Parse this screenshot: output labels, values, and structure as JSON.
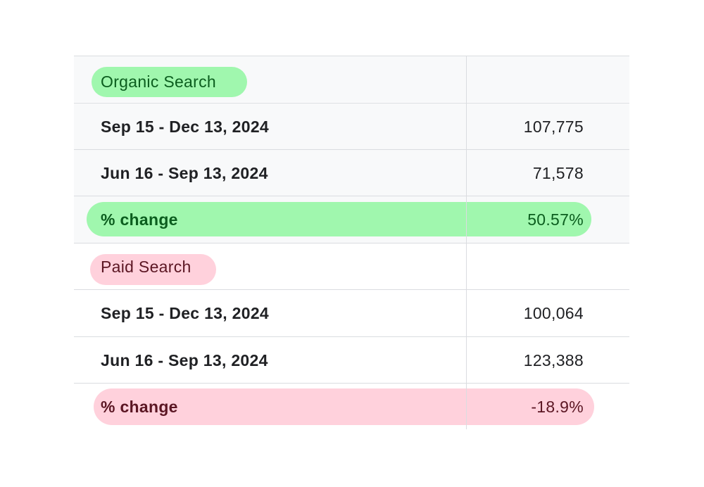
{
  "colors": {
    "organic_highlight": "#a0f7ae",
    "organic_text": "#0b5d1e",
    "paid_highlight": "#ffd1dc",
    "paid_text": "#5b1623",
    "grid": "#dadce0",
    "shaded_row": "#f8f9fa"
  },
  "organic": {
    "title": "Organic Search",
    "rows": [
      {
        "label": "Sep 15 - Dec 13, 2024",
        "value": "107,775"
      },
      {
        "label": "Jun 16 - Sep 13, 2024",
        "value": "71,578"
      }
    ],
    "change_label": "% change",
    "change_value": "50.57%"
  },
  "paid": {
    "title": "Paid Search",
    "rows": [
      {
        "label": "Sep 15 - Dec 13, 2024",
        "value": "100,064"
      },
      {
        "label": "Jun 16 - Sep 13, 2024",
        "value": "123,388"
      }
    ],
    "change_label": "% change",
    "change_value": "-18.9%"
  }
}
